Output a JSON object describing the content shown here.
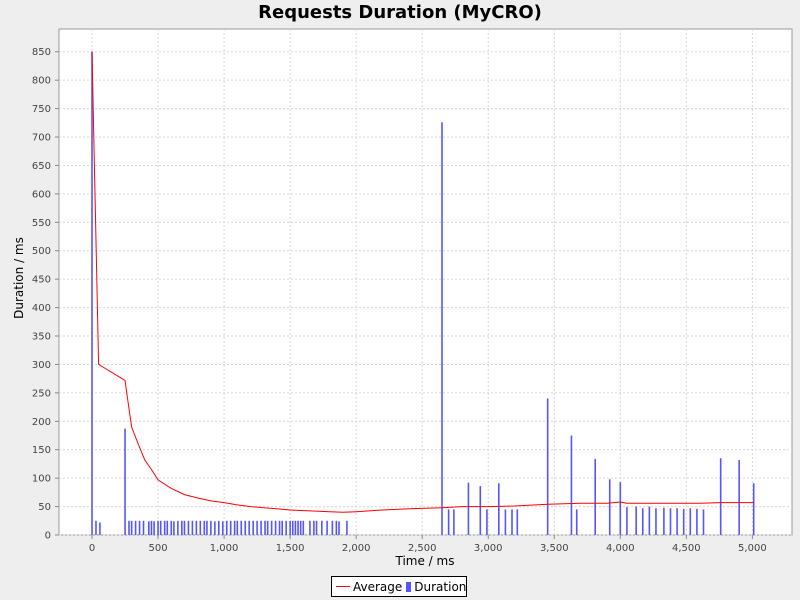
{
  "chart_data": {
    "type": "bar",
    "title": "Requests Duration (MyCRO)",
    "xlabel": "Time / ms",
    "ylabel": "Duration / ms",
    "xlim": [
      -250,
      5300
    ],
    "ylim": [
      0,
      890
    ],
    "x_ticks": [
      0,
      500,
      1000,
      1500,
      2000,
      2500,
      3000,
      3500,
      4000,
      4500,
      5000
    ],
    "x_tick_labels": [
      "0",
      "500",
      "1,000",
      "1,500",
      "2,000",
      "2,500",
      "3,000",
      "3,500",
      "4,000",
      "4,500",
      "5,000"
    ],
    "y_ticks": [
      0,
      50,
      100,
      150,
      200,
      250,
      300,
      350,
      400,
      450,
      500,
      550,
      600,
      650,
      700,
      750,
      800,
      850
    ],
    "grid": true,
    "legend_position": "bottom",
    "series": [
      {
        "name": "Average",
        "type": "line",
        "color": "#ff0000",
        "x": [
          0,
          50,
          250,
          300,
          350,
          400,
          450,
          500,
          600,
          700,
          800,
          900,
          1000,
          1100,
          1200,
          1300,
          1400,
          1500,
          1600,
          1700,
          1800,
          1900,
          2000,
          2200,
          2400,
          2650,
          2800,
          3000,
          3200,
          3450,
          3700,
          3900,
          4000,
          4050,
          4200,
          4400,
          4600,
          4760,
          4900,
          5010
        ],
        "y": [
          850,
          300,
          272,
          190,
          160,
          132,
          115,
          97,
          82,
          71,
          65,
          60,
          57,
          53,
          50,
          48,
          46,
          44,
          43,
          42,
          41,
          40,
          41,
          44,
          46,
          48,
          50,
          50,
          51,
          54,
          56,
          56,
          58,
          56,
          56,
          56,
          56,
          57,
          57,
          57
        ]
      },
      {
        "name": "Duration",
        "type": "bar",
        "color": "#5555ff",
        "x": [
          0,
          30,
          60,
          250,
          280,
          300,
          330,
          360,
          390,
          430,
          450,
          470,
          500,
          520,
          550,
          570,
          600,
          620,
          650,
          680,
          700,
          730,
          760,
          790,
          820,
          850,
          870,
          900,
          930,
          960,
          990,
          1020,
          1050,
          1080,
          1100,
          1130,
          1160,
          1190,
          1220,
          1250,
          1280,
          1310,
          1330,
          1360,
          1390,
          1420,
          1440,
          1470,
          1500,
          1520,
          1540,
          1560,
          1580,
          1600,
          1650,
          1680,
          1700,
          1740,
          1780,
          1820,
          1850,
          1870,
          1930,
          2650,
          2700,
          2740,
          2850,
          2940,
          2990,
          3080,
          3130,
          3180,
          3220,
          3450,
          3630,
          3670,
          3810,
          3920,
          4000,
          4050,
          4120,
          4170,
          4220,
          4270,
          4330,
          4380,
          4430,
          4480,
          4530,
          4580,
          4630,
          4760,
          4900,
          5010
        ],
        "y": [
          850,
          25,
          22,
          187,
          25,
          25,
          25,
          25,
          25,
          24,
          25,
          24,
          25,
          25,
          25,
          25,
          25,
          24,
          25,
          25,
          25,
          25,
          25,
          25,
          25,
          25,
          25,
          25,
          24,
          25,
          24,
          25,
          25,
          25,
          25,
          25,
          25,
          25,
          25,
          25,
          25,
          25,
          25,
          25,
          25,
          25,
          25,
          25,
          25,
          25,
          25,
          25,
          25,
          25,
          25,
          25,
          25,
          25,
          25,
          25,
          25,
          24,
          25,
          726,
          45,
          45,
          92,
          86,
          45,
          91,
          45,
          45,
          45,
          240,
          175,
          45,
          134,
          98,
          93,
          49,
          50,
          47,
          50,
          47,
          48,
          47,
          47,
          46,
          47,
          46,
          45,
          135,
          132,
          91
        ]
      }
    ]
  }
}
